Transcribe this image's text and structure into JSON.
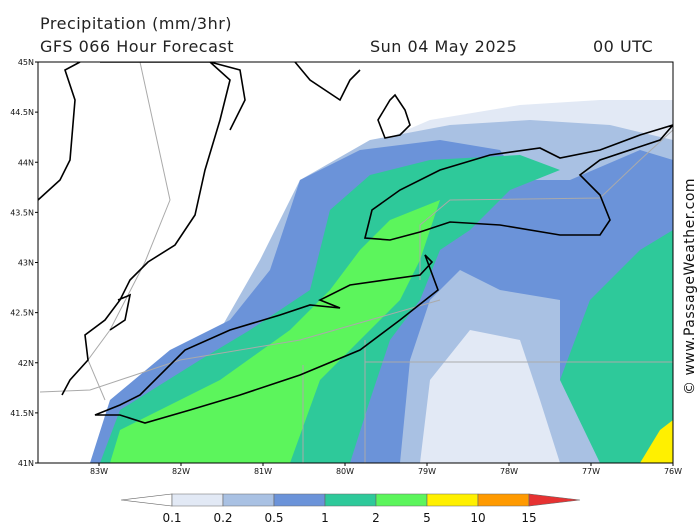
{
  "header": {
    "title": "Precipitation (mm/3hr)",
    "model": "GFS 066 Hour Forecast",
    "date": "Sun 04 May 2025",
    "time": "00 UTC"
  },
  "lat_labels": [
    "45N",
    "44.5N",
    "44N",
    "43.5N",
    "43N",
    "42.5N",
    "42N",
    "41.5N",
    "41N"
  ],
  "lon_labels": [
    "83W",
    "82W",
    "81W",
    "80W",
    "79W",
    "78W",
    "77W",
    "76W"
  ],
  "colorbar": {
    "labels": [
      "0.1",
      "0.2",
      "0.5",
      "1",
      "2",
      "5",
      "10",
      "15"
    ],
    "colors": [
      "#ffffff",
      "#e2e9f5",
      "#a9c1e3",
      "#6b93d9",
      "#2ec99a",
      "#5cf55c",
      "#fff000",
      "#ff9a00",
      "#e63232"
    ]
  },
  "watermark": "© www.PassageWeather.com"
}
